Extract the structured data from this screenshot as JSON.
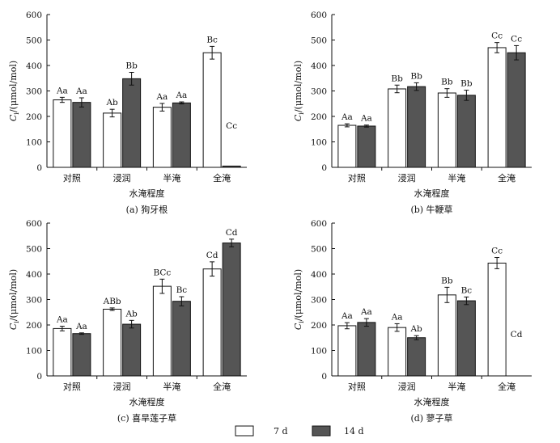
{
  "legend": {
    "items": [
      {
        "label": "7 d",
        "color": "#ffffff"
      },
      {
        "label": "14 d",
        "color": "#555555"
      }
    ],
    "placement": "bottom-center"
  },
  "chart_data": [
    {
      "type": "bar",
      "caption": "(a) 狗牙根",
      "ylabel": "Ci/(μmol/mol)",
      "ylabel_main": "C",
      "ylabel_sub": "i",
      "ylabel_unit": "/(μmol/mol)",
      "xlabel": "水淹程度",
      "categories": [
        "对照",
        "浸润",
        "半淹",
        "全淹"
      ],
      "ylim": [
        0,
        600
      ],
      "yticks": [
        0,
        100,
        200,
        300,
        400,
        500,
        600
      ],
      "series": [
        {
          "name": "7 d",
          "values": [
            265,
            213,
            236,
            450
          ],
          "errors": [
            10,
            15,
            15,
            25
          ],
          "labels": [
            "Aa",
            "Ab",
            "Aa",
            "Bc"
          ]
        },
        {
          "name": "14 d",
          "values": [
            255,
            348,
            253,
            5
          ],
          "errors": [
            18,
            25,
            4,
            0
          ],
          "labels": [
            "Aa",
            "Bb",
            "Aa",
            "Cc"
          ]
        }
      ]
    },
    {
      "type": "bar",
      "caption": "(b) 牛鞭草",
      "ylabel": "Ci/(μmol/mol)",
      "ylabel_main": "C",
      "ylabel_sub": "i",
      "ylabel_unit": "/(μmol/mol)",
      "xlabel": "水淹程度",
      "categories": [
        "对照",
        "浸润",
        "半淹",
        "全淹"
      ],
      "ylim": [
        0,
        600
      ],
      "yticks": [
        0,
        100,
        200,
        300,
        400,
        500,
        600
      ],
      "series": [
        {
          "name": "7 d",
          "values": [
            165,
            308,
            292,
            470
          ],
          "errors": [
            6,
            15,
            17,
            20
          ],
          "labels": [
            "Aa",
            "Bb",
            "Bb",
            "Cc"
          ]
        },
        {
          "name": "14 d",
          "values": [
            162,
            317,
            283,
            450
          ],
          "errors": [
            4,
            15,
            20,
            28
          ],
          "labels": [
            "Aa",
            "Bb",
            "Bb",
            "Cc"
          ]
        }
      ]
    },
    {
      "type": "bar",
      "caption": "(c) 喜旱莲子草",
      "ylabel": "Ci/(μmol/mol)",
      "ylabel_main": "C",
      "ylabel_sub": "i",
      "ylabel_unit": "/(μmol/mol)",
      "xlabel": "水淹程度",
      "categories": [
        "对照",
        "浸润",
        "半淹",
        "全淹"
      ],
      "ylim": [
        0,
        600
      ],
      "yticks": [
        0,
        100,
        200,
        300,
        400,
        500,
        600
      ],
      "series": [
        {
          "name": "7 d",
          "values": [
            186,
            262,
            352,
            420
          ],
          "errors": [
            9,
            5,
            28,
            28
          ],
          "labels": [
            "Aa",
            "ABb",
            "BCc",
            "Cd"
          ]
        },
        {
          "name": "14 d",
          "values": [
            166,
            203,
            293,
            522
          ],
          "errors": [
            3,
            15,
            18,
            15
          ],
          "labels": [
            "Aa",
            "Ab",
            "Bc",
            "Cd"
          ]
        }
      ]
    },
    {
      "type": "bar",
      "caption": "(d) 蓼子草",
      "ylabel": "Ci/(μmol/mol)",
      "ylabel_main": "C",
      "ylabel_sub": "i",
      "ylabel_unit": "/(μmol/mol)",
      "xlabel": "水淹程度",
      "categories": [
        "对照",
        "浸润",
        "半淹",
        "全淹"
      ],
      "ylim": [
        0,
        600
      ],
      "yticks": [
        0,
        100,
        200,
        300,
        400,
        500,
        600
      ],
      "series": [
        {
          "name": "7 d",
          "values": [
            197,
            190,
            318,
            443
          ],
          "errors": [
            12,
            15,
            30,
            22
          ],
          "labels": [
            "Aa",
            "Aa",
            "Bb",
            "Cc"
          ]
        },
        {
          "name": "14 d",
          "values": [
            210,
            150,
            295,
            0
          ],
          "errors": [
            15,
            8,
            15,
            0
          ],
          "labels": [
            "Aa",
            "Ab",
            "Bc",
            "Cd"
          ]
        }
      ]
    }
  ]
}
